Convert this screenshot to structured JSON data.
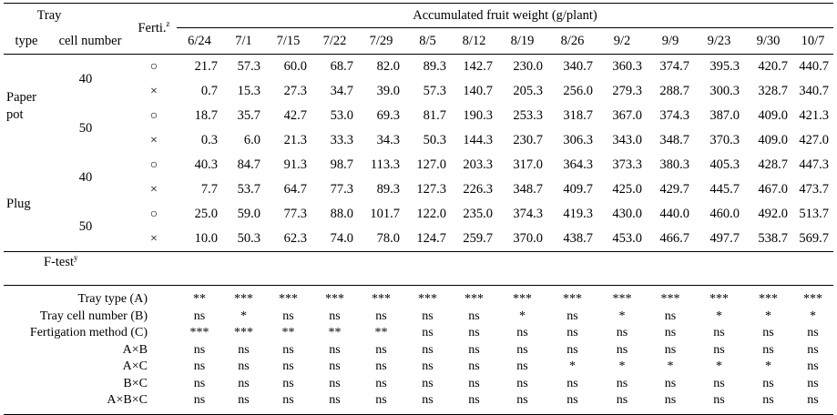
{
  "header": {
    "tray_label": "Tray",
    "type_label": "type",
    "cell_label": "cell number",
    "ferti_label": "Ferti.",
    "ferti_sup": "z",
    "afw_label": "Accumulated fruit weight (g/plant)",
    "dates": [
      "6/24",
      "7/1",
      "7/15",
      "7/22",
      "7/29",
      "8/5",
      "8/12",
      "8/19",
      "8/26",
      "9/2",
      "9/9",
      "9/23",
      "9/30",
      "10/7"
    ]
  },
  "groups": [
    {
      "type": "Paper\npot",
      "subgroups": [
        {
          "cell": "40",
          "rows": [
            {
              "ferti": "○",
              "values": [
                "21.7",
                "57.3",
                "60.0",
                "68.7",
                "82.0",
                "89.3",
                "142.7",
                "230.0",
                "340.7",
                "360.3",
                "374.7",
                "395.3",
                "420.7",
                "440.7"
              ]
            },
            {
              "ferti": "×",
              "values": [
                "0.7",
                "15.3",
                "27.3",
                "34.7",
                "39.0",
                "57.3",
                "140.7",
                "205.3",
                "256.0",
                "279.3",
                "288.7",
                "300.3",
                "328.7",
                "340.7"
              ]
            }
          ]
        },
        {
          "cell": "50",
          "rows": [
            {
              "ferti": "○",
              "values": [
                "18.7",
                "35.7",
                "42.7",
                "53.0",
                "69.3",
                "81.7",
                "190.3",
                "253.3",
                "318.7",
                "367.0",
                "374.3",
                "387.0",
                "409.0",
                "421.3"
              ]
            },
            {
              "ferti": "×",
              "values": [
                "0.3",
                "6.0",
                "21.3",
                "33.3",
                "34.3",
                "50.3",
                "144.3",
                "230.7",
                "306.3",
                "343.0",
                "348.7",
                "370.3",
                "409.0",
                "427.0"
              ]
            }
          ]
        }
      ]
    },
    {
      "type": "Plug",
      "subgroups": [
        {
          "cell": "40",
          "rows": [
            {
              "ferti": "○",
              "values": [
                "40.3",
                "84.7",
                "91.3",
                "98.7",
                "113.3",
                "127.0",
                "203.3",
                "317.0",
                "364.3",
                "373.3",
                "380.3",
                "405.3",
                "428.7",
                "447.3"
              ]
            },
            {
              "ferti": "×",
              "values": [
                "7.7",
                "53.7",
                "64.7",
                "77.3",
                "89.3",
                "127.3",
                "226.3",
                "348.7",
                "409.7",
                "425.0",
                "429.7",
                "445.7",
                "467.0",
                "473.7"
              ]
            }
          ]
        },
        {
          "cell": "50",
          "rows": [
            {
              "ferti": "○",
              "values": [
                "25.0",
                "59.0",
                "77.3",
                "88.0",
                "101.7",
                "122.0",
                "235.0",
                "374.3",
                "419.3",
                "430.0",
                "440.0",
                "460.0",
                "492.0",
                "513.7"
              ]
            },
            {
              "ferti": "×",
              "values": [
                "10.0",
                "50.3",
                "62.3",
                "74.0",
                "78.0",
                "124.7",
                "259.7",
                "370.0",
                "438.7",
                "453.0",
                "466.7",
                "497.7",
                "538.7",
                "569.7"
              ]
            }
          ]
        }
      ]
    }
  ],
  "ftest": {
    "title": "F-test",
    "title_sup": "y",
    "rows": [
      {
        "label": "Tray type (A)",
        "values": [
          "**",
          "***",
          "***",
          "***",
          "***",
          "***",
          "***",
          "***",
          "***",
          "***",
          "***",
          "***",
          "***",
          "***"
        ]
      },
      {
        "label": "Tray cell number (B)",
        "values": [
          "ns",
          "*",
          "ns",
          "ns",
          "ns",
          "ns",
          "ns",
          "*",
          "ns",
          "*",
          "ns",
          "*",
          "*",
          "*"
        ]
      },
      {
        "label": "Fertigation method (C)",
        "values": [
          "***",
          "***",
          "**",
          "**",
          "**",
          "ns",
          "ns",
          "ns",
          "ns",
          "ns",
          "ns",
          "ns",
          "ns",
          "ns"
        ]
      },
      {
        "label": "A×B",
        "values": [
          "ns",
          "ns",
          "ns",
          "ns",
          "ns",
          "ns",
          "ns",
          "ns",
          "ns",
          "ns",
          "ns",
          "ns",
          "ns",
          "ns"
        ]
      },
      {
        "label": "A×C",
        "values": [
          "ns",
          "ns",
          "ns",
          "ns",
          "ns",
          "ns",
          "ns",
          "ns",
          "*",
          "*",
          "*",
          "*",
          "*",
          "ns"
        ]
      },
      {
        "label": "B×C",
        "values": [
          "ns",
          "ns",
          "ns",
          "ns",
          "ns",
          "ns",
          "ns",
          "ns",
          "ns",
          "ns",
          "ns",
          "ns",
          "ns",
          "ns"
        ]
      },
      {
        "label": "A×B×C",
        "values": [
          "ns",
          "ns",
          "ns",
          "ns",
          "ns",
          "ns",
          "ns",
          "ns",
          "ns",
          "ns",
          "ns",
          "ns",
          "ns",
          "ns"
        ]
      }
    ]
  }
}
